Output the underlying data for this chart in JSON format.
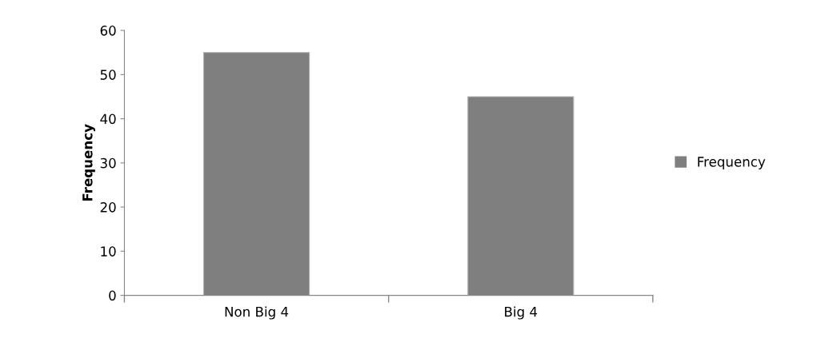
{
  "chart_data": {
    "type": "bar",
    "ylabel": "Frequency",
    "categories": [
      "Non Big 4",
      "Big 4"
    ],
    "series": [
      {
        "name": "Frequency",
        "color": "#7f7f7f",
        "values": [
          55,
          45
        ]
      }
    ],
    "ylim": [
      0,
      60
    ],
    "yticks": [
      0,
      10,
      20,
      30,
      40,
      50,
      60
    ],
    "grid": false,
    "legend": "right"
  }
}
